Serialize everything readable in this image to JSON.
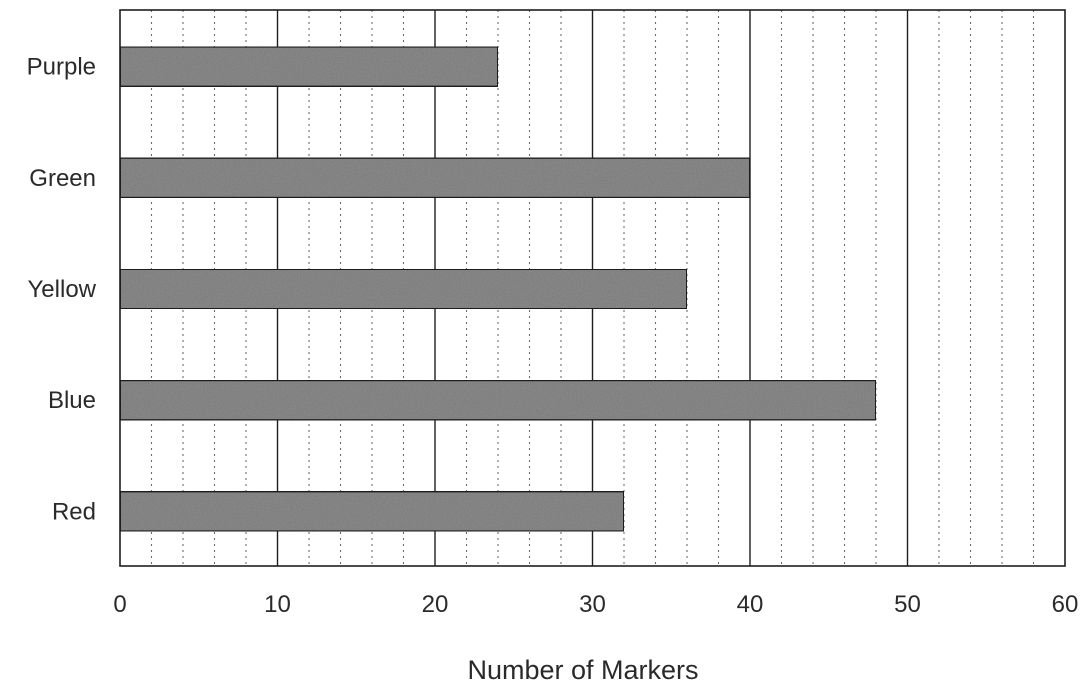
{
  "chart_data": {
    "type": "bar",
    "orientation": "horizontal",
    "categories": [
      "Purple",
      "Green",
      "Yellow",
      "Blue",
      "Red"
    ],
    "values": [
      24,
      40,
      36,
      48,
      32
    ],
    "title": "",
    "xlabel": "Number of Markers",
    "ylabel": "",
    "xlim": [
      0,
      60
    ],
    "x_ticks": [
      0,
      10,
      20,
      30,
      40,
      50,
      60
    ],
    "minor_tick_step": 2,
    "grid": true,
    "bar_color": "#8c8c8c",
    "bar_edge_color": "#1e1e1e",
    "grid_color": "#3a3a3a"
  }
}
